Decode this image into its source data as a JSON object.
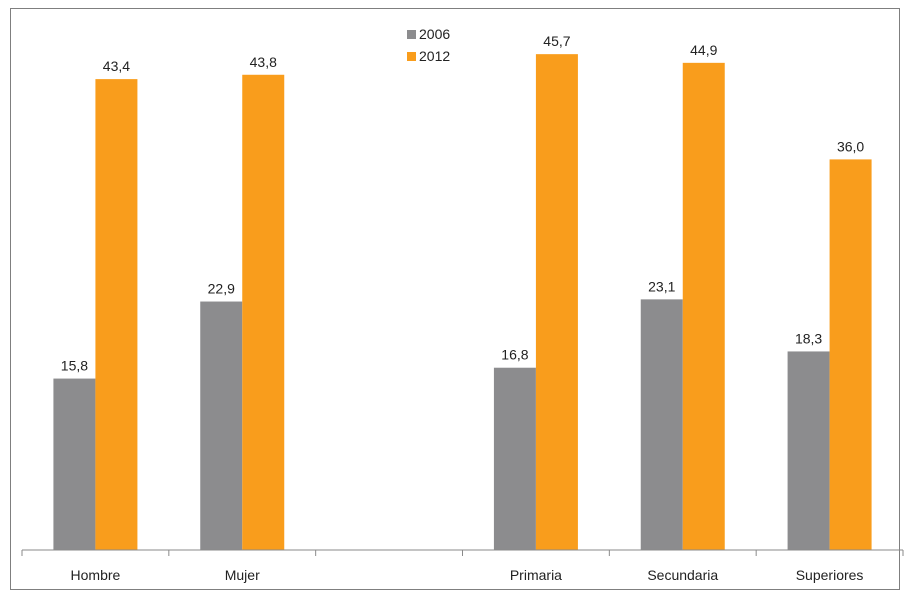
{
  "chart_data": {
    "type": "bar",
    "categories": [
      "Hombre",
      "Mujer",
      "",
      "Primaria",
      "Secundaria",
      "Superiores"
    ],
    "series": [
      {
        "name": "2006",
        "color": "#8c8c8e",
        "values": [
          15.8,
          22.9,
          null,
          16.8,
          23.1,
          18.3
        ],
        "labels": [
          "15,8",
          "22,9",
          "",
          "16,8",
          "23,1",
          "18,3"
        ]
      },
      {
        "name": "2012",
        "color": "#f99d1c",
        "values": [
          43.4,
          43.8,
          null,
          45.7,
          44.9,
          36.0
        ],
        "labels": [
          "43,4",
          "43,8",
          "",
          "45,7",
          "44,9",
          "36,0"
        ]
      }
    ],
    "ylim": [
      0,
      50
    ],
    "grid": false,
    "legend_position": "top-center"
  }
}
